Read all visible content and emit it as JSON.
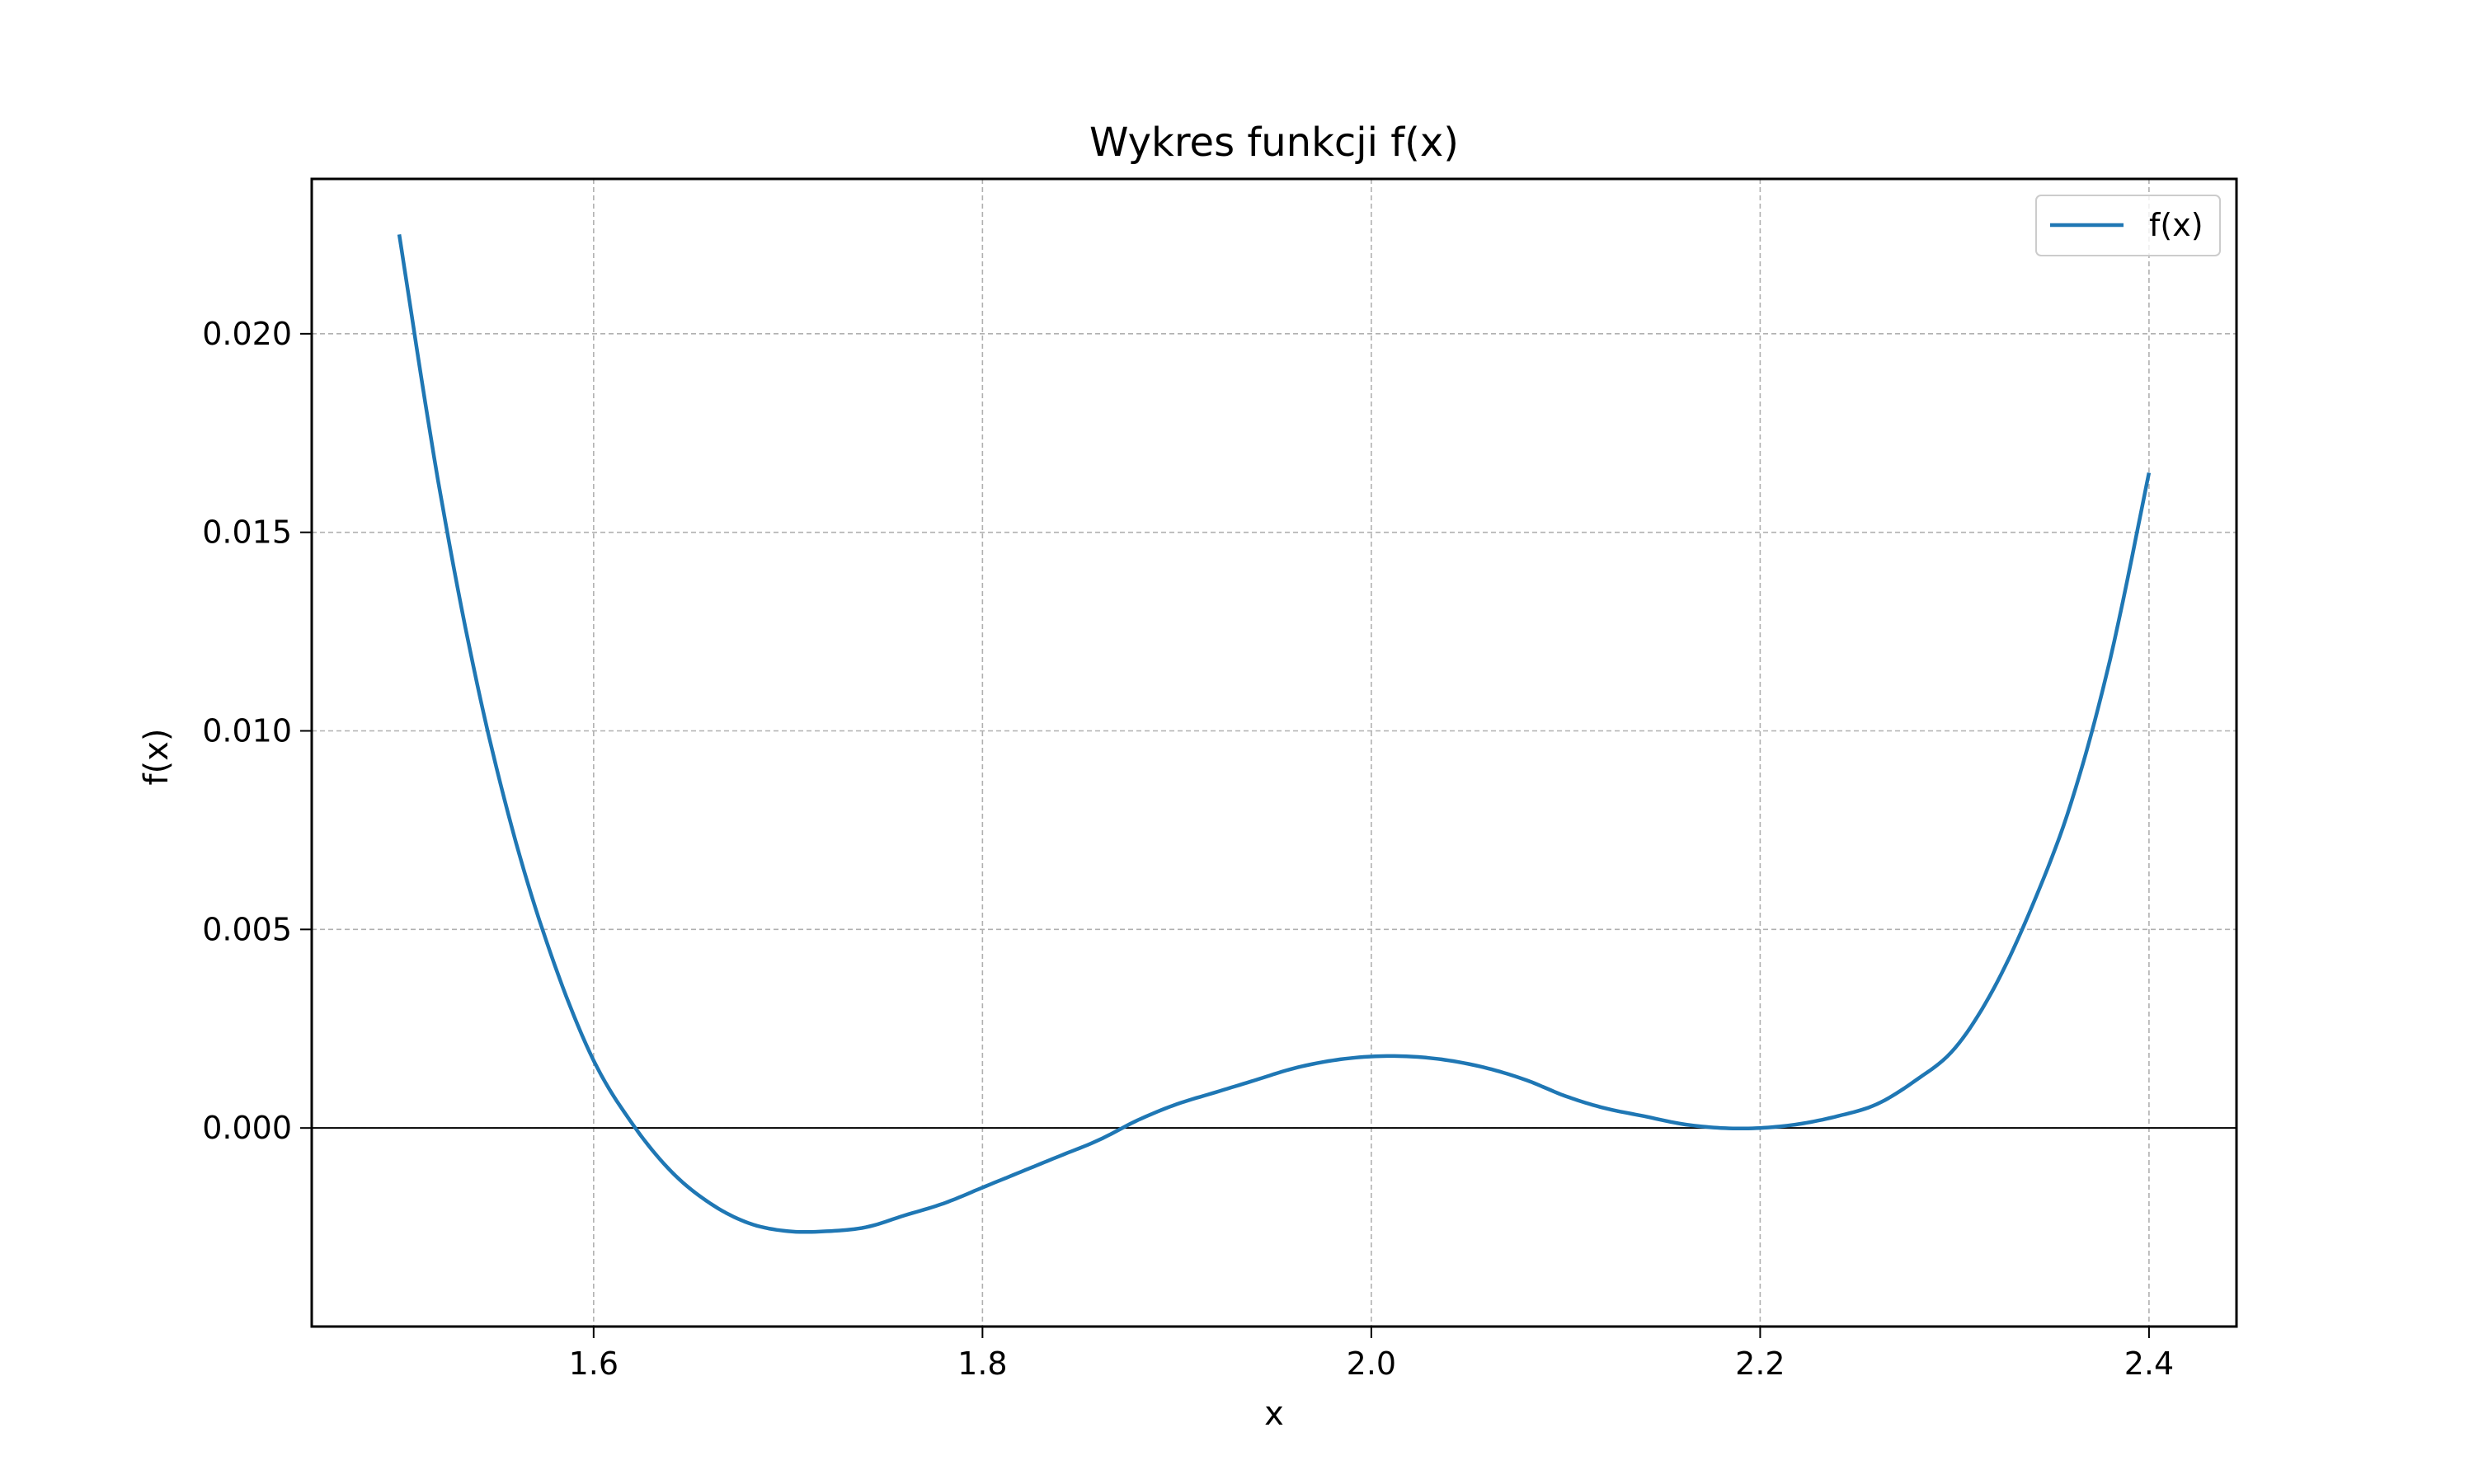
{
  "chart_data": {
    "type": "line",
    "title": "Wykres funkcji f(x)",
    "xlabel": "x",
    "ylabel": "f(x)",
    "xlim": [
      1.455,
      2.445
    ],
    "ylim": [
      -0.005,
      0.0239
    ],
    "x_ticks": [
      1.6,
      1.8,
      2.0,
      2.2,
      2.4
    ],
    "x_tick_labels": [
      "1.6",
      "1.8",
      "2.0",
      "2.2",
      "2.4"
    ],
    "y_ticks": [
      0.0,
      0.005,
      0.01,
      0.015,
      0.02
    ],
    "y_tick_labels": [
      "0.000",
      "0.005",
      "0.010",
      "0.015",
      "0.020"
    ],
    "grid": true,
    "legend_position": "top-right",
    "zero_line": true,
    "series": [
      {
        "name": "f(x)",
        "color": "#1f77b4",
        "x": [
          1.5,
          1.52,
          1.54,
          1.56,
          1.58,
          1.6,
          1.62,
          1.64,
          1.66,
          1.68,
          1.7,
          1.72,
          1.74,
          1.76,
          1.78,
          1.8,
          1.82,
          1.84,
          1.86,
          1.88,
          1.9,
          1.92,
          1.94,
          1.96,
          1.98,
          2.0,
          2.02,
          2.04,
          2.06,
          2.08,
          2.1,
          2.12,
          2.14,
          2.16,
          2.18,
          2.2,
          2.22,
          2.24,
          2.26,
          2.28,
          2.3,
          2.32,
          2.34,
          2.36,
          2.38,
          2.4
        ],
        "y": [
          0.0225,
          0.0163,
          0.0112,
          0.0072,
          0.0041,
          0.0017,
          0.0001,
          -0.0011,
          -0.0019,
          -0.0024,
          -0.0026,
          -0.0026,
          -0.0025,
          -0.0022,
          -0.0019,
          -0.0015,
          -0.0011,
          -0.0007,
          -0.0003,
          0.0002,
          0.0006,
          0.0009,
          0.0012,
          0.0015,
          0.0017,
          0.0018,
          0.0018,
          0.0017,
          0.0015,
          0.0012,
          0.0008,
          0.0005,
          0.0003,
          0.0001,
          0.0,
          0.0,
          0.0001,
          0.0003,
          0.0006,
          0.0012,
          0.002,
          0.0035,
          0.0056,
          0.0082,
          0.0118,
          0.0165
        ]
      }
    ]
  }
}
